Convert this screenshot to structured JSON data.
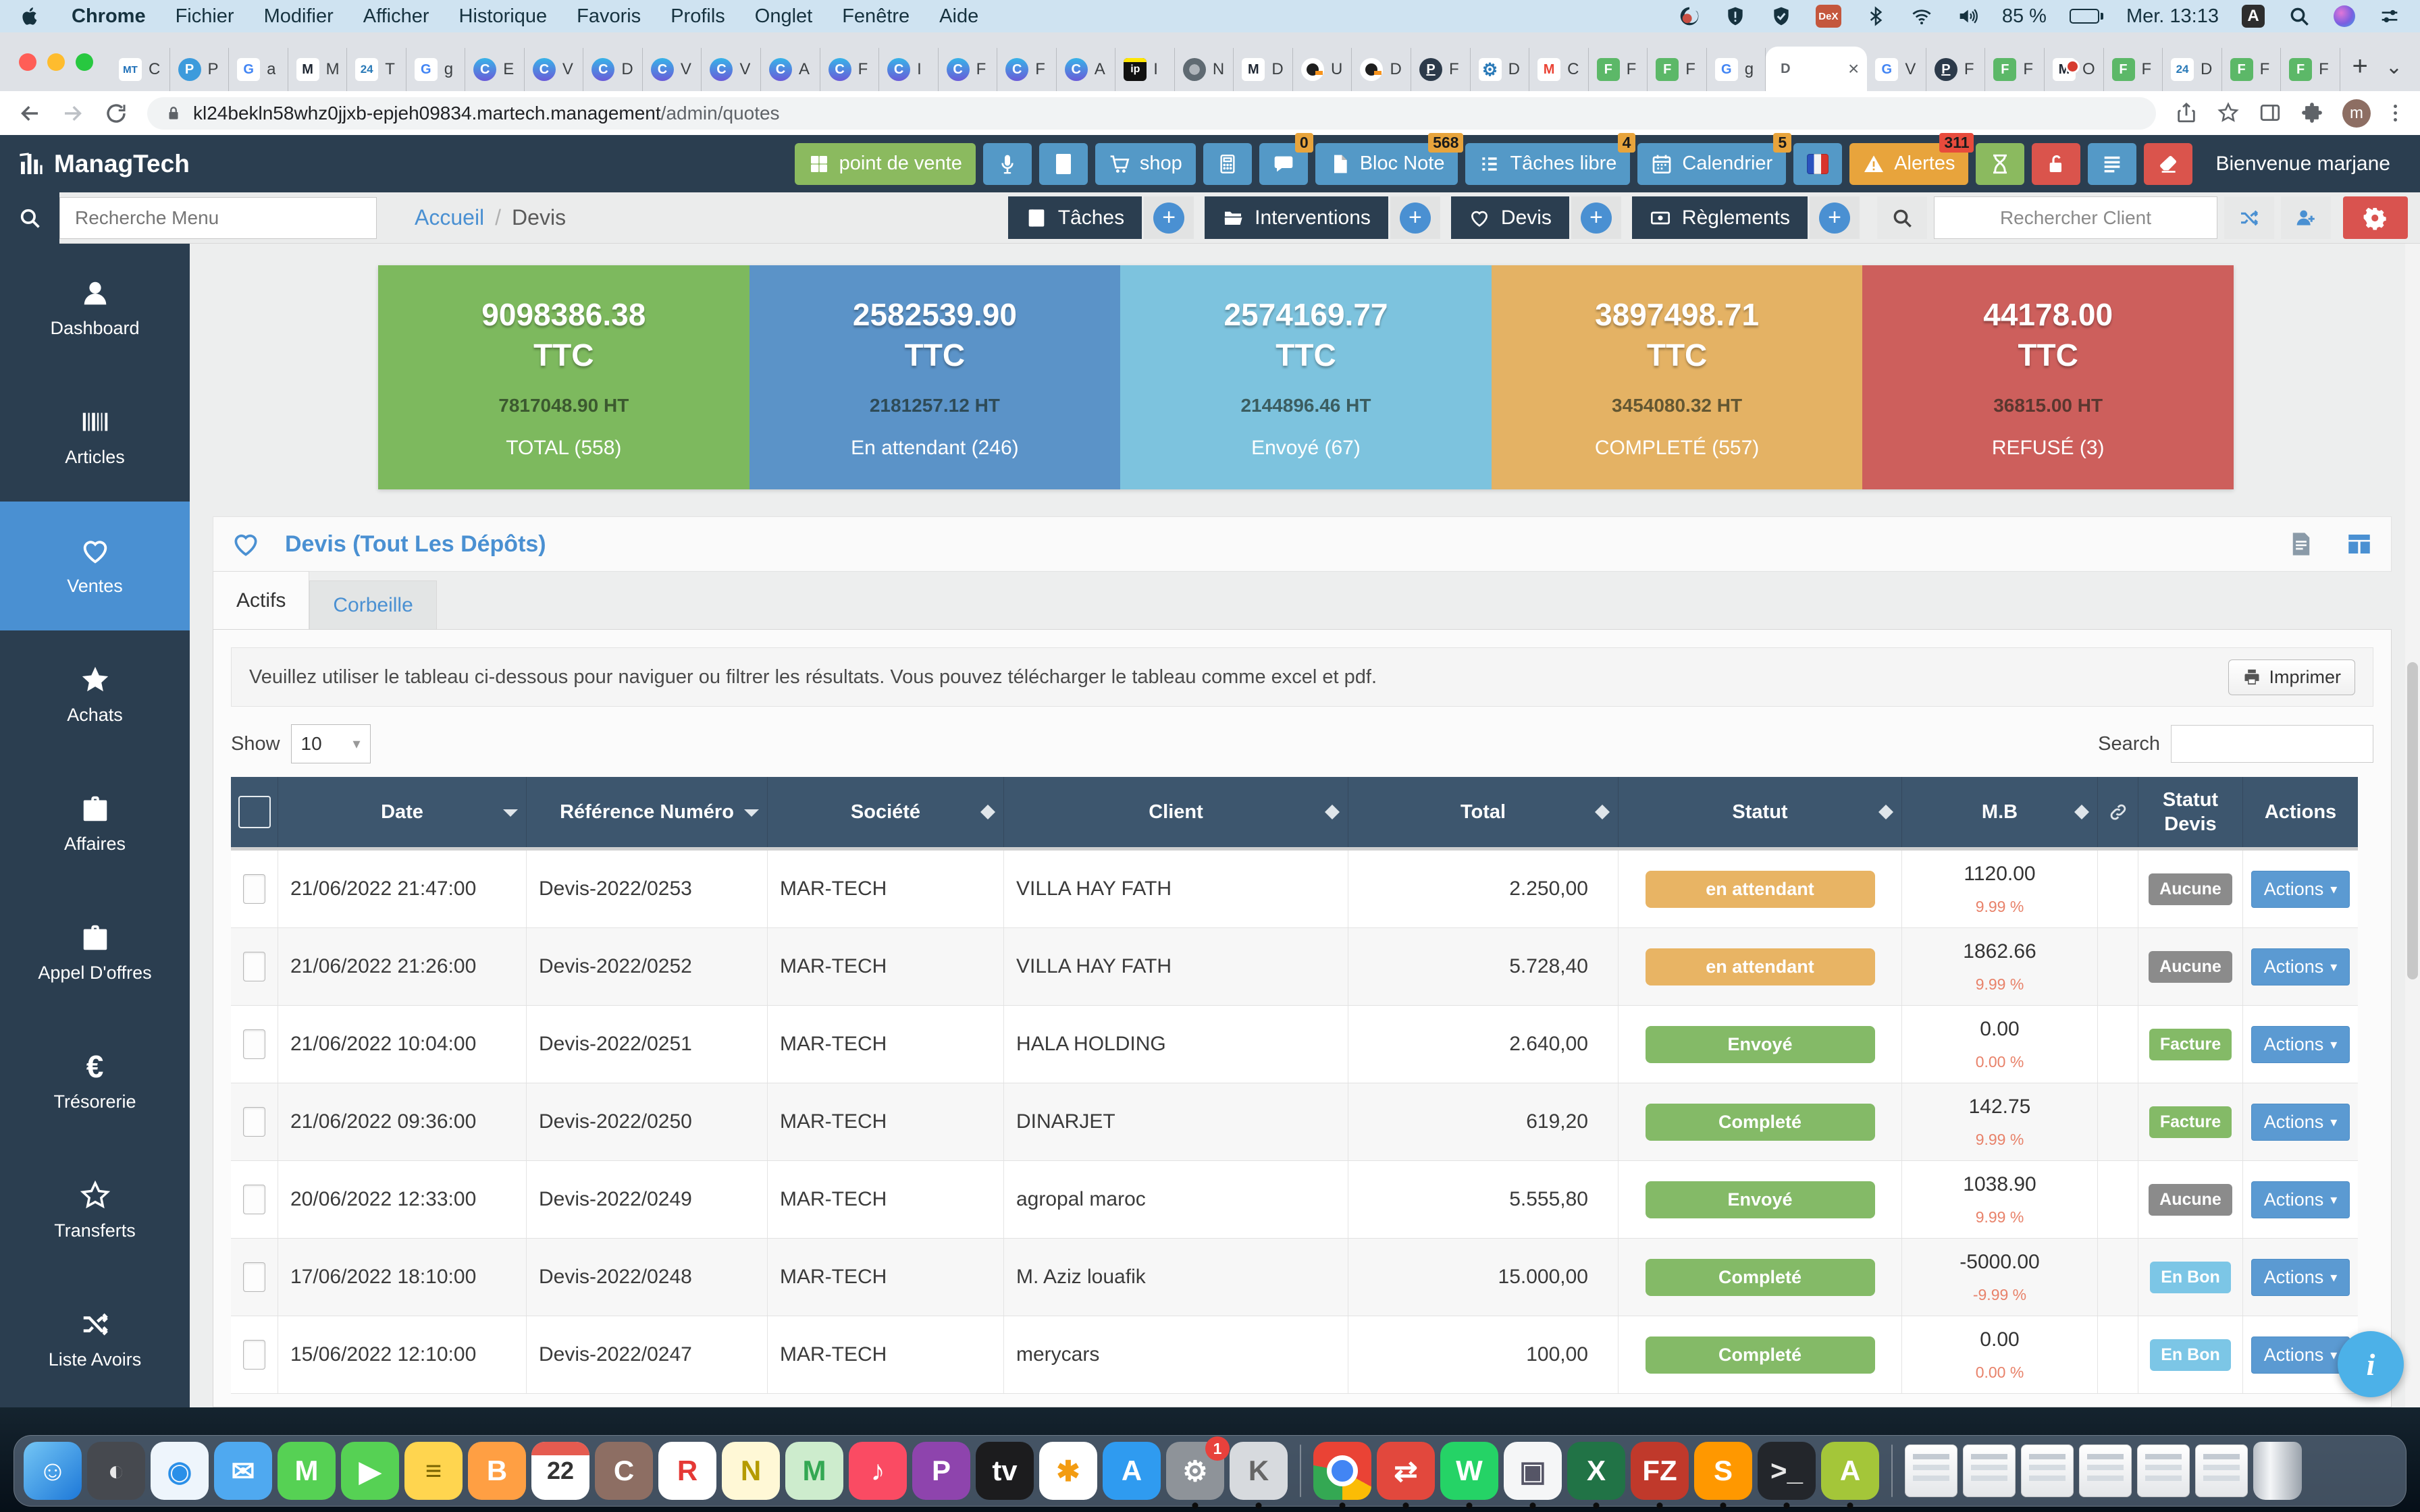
{
  "menubar": {
    "items": [
      {
        "label": "Chrome",
        "strong": "strong"
      },
      {
        "label": "Fichier"
      },
      {
        "label": "Modifier"
      },
      {
        "label": "Afficher"
      },
      {
        "label": "Historique"
      },
      {
        "label": "Favoris"
      },
      {
        "label": "Profils"
      },
      {
        "label": "Onglet"
      },
      {
        "label": "Fenêtre"
      },
      {
        "label": "Aide"
      }
    ],
    "battery_percent": "85 %",
    "clock": "Mer. 13:13",
    "input_source": "A"
  },
  "tabstrip": {
    "tabs": [
      {
        "k": "mt",
        "t": "MT",
        "frag": "C"
      },
      {
        "k": "pb",
        "t": "P",
        "frag": "P"
      },
      {
        "k": "g",
        "t": "G",
        "frag": "a"
      },
      {
        "k": "m",
        "t": "M",
        "frag": "M"
      },
      {
        "k": "t24",
        "t": "24",
        "frag": "T"
      },
      {
        "k": "g",
        "t": "G",
        "frag": "g"
      },
      {
        "k": "c",
        "t": "C",
        "frag": "E"
      },
      {
        "k": "c",
        "t": "C",
        "frag": "V"
      },
      {
        "k": "c",
        "t": "C",
        "frag": "D"
      },
      {
        "k": "c",
        "t": "C",
        "frag": "V"
      },
      {
        "k": "c",
        "t": "C",
        "frag": "V"
      },
      {
        "k": "c",
        "t": "C",
        "frag": "A"
      },
      {
        "k": "c",
        "t": "C",
        "frag": "F"
      },
      {
        "k": "c",
        "t": "C",
        "frag": "I"
      },
      {
        "k": "c",
        "t": "C",
        "frag": "F"
      },
      {
        "k": "c",
        "t": "C",
        "frag": "F"
      },
      {
        "k": "c",
        "t": "C",
        "frag": "A"
      },
      {
        "k": "ip",
        "t": "ip",
        "frag": "I"
      },
      {
        "k": "cr",
        "t": "",
        "frag": "N"
      },
      {
        "k": "m",
        "t": "M",
        "frag": "D"
      },
      {
        "k": "dd",
        "t": "",
        "frag": "U"
      },
      {
        "k": "dd",
        "t": "",
        "frag": "D"
      },
      {
        "k": "pd",
        "t": "P",
        "frag": "F"
      },
      {
        "k": "gear",
        "t": "⚙",
        "frag": "D"
      },
      {
        "k": "gm",
        "t": "M",
        "frag": "C"
      },
      {
        "k": "f",
        "t": "F",
        "frag": "F"
      },
      {
        "k": "f",
        "t": "F",
        "frag": "F"
      },
      {
        "k": "g",
        "t": "G",
        "frag": "g"
      },
      {
        "k": "active",
        "t": "D",
        "frag": "",
        "close": "×"
      },
      {
        "k": "g",
        "t": "G",
        "frag": "V"
      },
      {
        "k": "pd",
        "t": "P",
        "frag": "F"
      },
      {
        "k": "f",
        "t": "F",
        "frag": "F"
      },
      {
        "k": "mr",
        "t": "M",
        "frag": "O"
      },
      {
        "k": "f",
        "t": "F",
        "frag": "F"
      },
      {
        "k": "t24",
        "t": "24",
        "frag": "D"
      },
      {
        "k": "f",
        "t": "F",
        "frag": "F"
      },
      {
        "k": "f",
        "t": "F",
        "frag": "F"
      }
    ],
    "new_tab_label": "+",
    "tab_menu_label": "⌄"
  },
  "urlbar": {
    "host": "kl24bekln58whz0jjxb-epjeh09834.martech.management",
    "path": "/admin/quotes",
    "avatar_initial": "m"
  },
  "header": {
    "logo": "ManagTech",
    "welcome": "Bienvenue marjane",
    "buttons": [
      {
        "label": "point de vente",
        "icon": "grid",
        "variant": "green"
      },
      {
        "icon": "mic",
        "variant": "blue"
      },
      {
        "icon": "stop",
        "variant": "blue"
      },
      {
        "label": "shop",
        "icon": "cart",
        "variant": "blue"
      },
      {
        "icon": "calculator",
        "variant": "blue"
      },
      {
        "icon": "chat",
        "variant": "blue",
        "badge": "0"
      },
      {
        "label": "Bloc Note",
        "icon": "note",
        "variant": "blue",
        "badge": "568"
      },
      {
        "label": "Tâches libre",
        "icon": "tasklist",
        "variant": "blue",
        "badge": "4"
      },
      {
        "label": "Calendrier",
        "icon": "calendar",
        "variant": "blue",
        "badge": "5"
      },
      {
        "icon": "flag-fr",
        "variant": "blue"
      },
      {
        "label": "Alertes",
        "icon": "warning",
        "variant": "orange",
        "badge": "311",
        "badge_variant": "red"
      },
      {
        "icon": "hourglass",
        "variant": "green"
      },
      {
        "icon": "unlock",
        "variant": "red"
      },
      {
        "icon": "menu-list",
        "variant": "blue"
      },
      {
        "icon": "eraser",
        "variant": "red"
      }
    ]
  },
  "toolbar": {
    "menu_search_placeholder": "Recherche Menu",
    "breadcrumb": [
      "Accueil",
      "Devis"
    ],
    "separator": "/",
    "add_label": "+",
    "modules": [
      {
        "label": "Tâches",
        "icon": "book"
      },
      {
        "label": "Interventions",
        "icon": "folder"
      },
      {
        "label": "Devis",
        "icon": "heart-o"
      },
      {
        "label": "Règlements",
        "icon": "money"
      }
    ],
    "client_search_placeholder": "Rechercher Client"
  },
  "sidebar": {
    "items": [
      {
        "label": "Dashboard",
        "icon": "user"
      },
      {
        "label": "Articles",
        "icon": "barcode"
      },
      {
        "label": "Ventes",
        "icon": "heart-o",
        "active": "active"
      },
      {
        "label": "Achats",
        "icon": "star"
      },
      {
        "label": "Affaires",
        "icon": "briefcase"
      },
      {
        "label": "Appel D'offres",
        "icon": "briefcase"
      },
      {
        "label": "Trésorerie",
        "icon": "euro"
      },
      {
        "label": "Transferts",
        "icon": "star-o"
      },
      {
        "label": "Liste Avoirs",
        "icon": "shuffle"
      }
    ]
  },
  "cards": [
    {
      "ttc": "9098386.38",
      "unit": "TTC",
      "ht": "7817048.90 HT",
      "label": "TOTAL (558)",
      "color": "#7db95e"
    },
    {
      "ttc": "2582539.90",
      "unit": "TTC",
      "ht": "2181257.12 HT",
      "label": "En attendant (246)",
      "color": "#5b93c8"
    },
    {
      "ttc": "2574169.77",
      "unit": "TTC",
      "ht": "2144896.46 HT",
      "label": "Envoyé (67)",
      "color": "#7dc3de"
    },
    {
      "ttc": "3897498.71",
      "unit": "TTC",
      "ht": "3454080.32 HT",
      "label": "COMPLETÉ (557)",
      "color": "#e4b264"
    },
    {
      "ttc": "44178.00",
      "unit": "TTC",
      "ht": "36815.00 HT",
      "label": "REFUSÉ (3)",
      "color": "#cd5f5c"
    }
  ],
  "section": {
    "title": "Devis (Tout Les Dépôts)",
    "tabs": [
      {
        "label": "Actifs",
        "state": "active"
      },
      {
        "label": "Corbeille",
        "state": "idle"
      }
    ],
    "info": "Veuillez utiliser le tableau ci-dessous pour naviguer ou filtrer les résultats. Vous pouvez télécharger le tableau comme excel et pdf.",
    "print_label": "Imprimer",
    "show_label": "Show",
    "show_value": "10",
    "search_label": "Search"
  },
  "table": {
    "columns": [
      "Date",
      "Référence Numéro",
      "Société",
      "Client",
      "Total",
      "Statut",
      "M.B",
      "Statut Devis",
      "Actions"
    ],
    "actions_label": "Actions",
    "rows": [
      {
        "date": "21/06/2022 21:47:00",
        "ref": "Devis-2022/0253",
        "company": "MAR-TECH",
        "client": "VILLA HAY FATH",
        "total": "2.250,00",
        "statut": "en attendant",
        "statut_class": "badge-orange",
        "mb": "1120.00",
        "pct": "9.99 %",
        "devis": "Aucune",
        "devis_class": "chip-gray"
      },
      {
        "date": "21/06/2022 21:26:00",
        "ref": "Devis-2022/0252",
        "company": "MAR-TECH",
        "client": "VILLA HAY FATH",
        "total": "5.728,40",
        "statut": "en attendant",
        "statut_class": "badge-orange",
        "mb": "1862.66",
        "pct": "9.99 %",
        "devis": "Aucune",
        "devis_class": "chip-gray"
      },
      {
        "date": "21/06/2022 10:04:00",
        "ref": "Devis-2022/0251",
        "company": "MAR-TECH",
        "client": "HALA HOLDING",
        "total": "2.640,00",
        "statut": "Envoyé",
        "statut_class": "badge-green",
        "mb": "0.00",
        "pct": "0.00 %",
        "devis": "Facture",
        "devis_class": "chip-green"
      },
      {
        "date": "21/06/2022 09:36:00",
        "ref": "Devis-2022/0250",
        "company": "MAR-TECH",
        "client": "DINARJET",
        "total": "619,20",
        "statut": "Completé",
        "statut_class": "badge-green",
        "mb": "142.75",
        "pct": "9.99 %",
        "devis": "Facture",
        "devis_class": "chip-green"
      },
      {
        "date": "20/06/2022 12:33:00",
        "ref": "Devis-2022/0249",
        "company": "MAR-TECH",
        "client": "agropal maroc",
        "total": "5.555,80",
        "statut": "Envoyé",
        "statut_class": "badge-green",
        "mb": "1038.90",
        "pct": "9.99 %",
        "devis": "Aucune",
        "devis_class": "chip-gray"
      },
      {
        "date": "17/06/2022 18:10:00",
        "ref": "Devis-2022/0248",
        "company": "MAR-TECH",
        "client": "M. Aziz louafik",
        "total": "15.000,00",
        "statut": "Completé",
        "statut_class": "badge-green",
        "mb": "-5000.00",
        "pct": "-9.99 %",
        "devis": "En Bon",
        "devis_class": "chip-blue"
      },
      {
        "date": "15/06/2022 12:10:00",
        "ref": "Devis-2022/0247",
        "company": "MAR-TECH",
        "client": "merycars",
        "total": "100,00",
        "statut": "Completé",
        "statut_class": "badge-green",
        "mb": "0.00",
        "pct": "0.00 %",
        "devis": "En Bon",
        "devis_class": "chip-blue"
      }
    ]
  },
  "fab": {
    "glyph": "i"
  },
  "dock": {
    "items": [
      {
        "kind": "app",
        "name": "finder",
        "t": "☺",
        "bg": "linear-gradient(135deg,#74c6f5,#1d78d8)",
        "fg": "#fff"
      },
      {
        "kind": "app",
        "name": "screenshot",
        "t": "◐",
        "bg": "#46494f",
        "fg": "#e8e8e8"
      },
      {
        "kind": "app",
        "name": "safari",
        "t": "◉",
        "bg": "#eef5fc",
        "fg": "#2a8fe8"
      },
      {
        "kind": "app",
        "name": "mail",
        "t": "✉",
        "bg": "#4fa9f0",
        "fg": "#fff"
      },
      {
        "kind": "app",
        "name": "messages",
        "t": "M",
        "bg": "#56d154",
        "fg": "#fff"
      },
      {
        "kind": "app",
        "name": "facetime",
        "t": "▶",
        "bg": "#56d154",
        "fg": "#fff"
      },
      {
        "kind": "app",
        "name": "stickies",
        "t": "≡",
        "bg": "#ffd54f",
        "fg": "#7a6400"
      },
      {
        "kind": "app",
        "name": "books",
        "t": "B",
        "bg": "#ff9f43",
        "fg": "#fff"
      },
      {
        "kind": "cal",
        "name": "calendar",
        "t": "22"
      },
      {
        "kind": "app",
        "name": "contacts",
        "t": "C",
        "bg": "#8d6e63",
        "fg": "#fff"
      },
      {
        "kind": "app",
        "name": "reminders",
        "t": "R",
        "bg": "#ffffff",
        "fg": "#e53935"
      },
      {
        "kind": "app",
        "name": "notes",
        "t": "N",
        "bg": "#fff8d6",
        "fg": "#b59b00"
      },
      {
        "kind": "app",
        "name": "maps",
        "t": "M",
        "bg": "#cdeccd",
        "fg": "#34a853"
      },
      {
        "kind": "app",
        "name": "music",
        "t": "♪",
        "bg": "#fa4b63",
        "fg": "#fff"
      },
      {
        "kind": "app",
        "name": "podcasts",
        "t": "P",
        "bg": "#8e44ad",
        "fg": "#fff"
      },
      {
        "kind": "app",
        "name": "tv",
        "t": "tv",
        "bg": "#1c1c1e",
        "fg": "#fff"
      },
      {
        "kind": "app",
        "name": "photos",
        "t": "✱",
        "bg": "#ffffff",
        "fg": "#f39c12"
      },
      {
        "kind": "app",
        "name": "appstore",
        "t": "A",
        "bg": "#2f9bf0",
        "fg": "#fff"
      },
      {
        "kind": "app",
        "name": "system-preferences",
        "t": "⚙",
        "bg": "#8e9399",
        "fg": "#fff",
        "badge": "1",
        "dot": "y"
      },
      {
        "kind": "app",
        "name": "keychain",
        "t": "K",
        "bg": "#d7dade",
        "fg": "#666",
        "dot": "y"
      },
      {
        "kind": "sep",
        "name": "dock-separator"
      },
      {
        "kind": "chrome",
        "name": "chrome",
        "t": "",
        "dot": "y"
      },
      {
        "kind": "app",
        "name": "remote-desktop",
        "t": "⇄",
        "bg": "#e2483d",
        "fg": "#fff",
        "dot": "y"
      },
      {
        "kind": "app",
        "name": "whatsapp",
        "t": "W",
        "bg": "#25d366",
        "fg": "#fff",
        "dot": "y"
      },
      {
        "kind": "app",
        "name": "preview",
        "t": "▣",
        "bg": "#f5f6f7",
        "fg": "#556",
        "dot": "y"
      },
      {
        "kind": "app",
        "name": "excel",
        "t": "X",
        "bg": "#217346",
        "fg": "#fff",
        "dot": "y"
      },
      {
        "kind": "app",
        "name": "filezilla",
        "t": "FZ",
        "bg": "#c0392b",
        "fg": "#fff",
        "dot": "y"
      },
      {
        "kind": "app",
        "name": "sublime-text",
        "t": "S",
        "bg": "#ff9800",
        "fg": "#fff",
        "dot": "y"
      },
      {
        "kind": "app",
        "name": "terminal",
        "t": ">_",
        "bg": "#23262b",
        "fg": "#e8e8e8",
        "dot": "y"
      },
      {
        "kind": "app",
        "name": "android",
        "t": "A",
        "bg": "#a4c639",
        "fg": "#fff",
        "dot": "y"
      },
      {
        "kind": "sep",
        "name": "dock-separator"
      },
      {
        "kind": "win",
        "name": "minimized-window"
      },
      {
        "kind": "win",
        "name": "minimized-window"
      },
      {
        "kind": "win",
        "name": "minimized-window"
      },
      {
        "kind": "win",
        "name": "minimized-window"
      },
      {
        "kind": "win",
        "name": "minimized-window"
      },
      {
        "kind": "win",
        "name": "minimized-window"
      },
      {
        "kind": "trash",
        "name": "trash"
      }
    ]
  }
}
